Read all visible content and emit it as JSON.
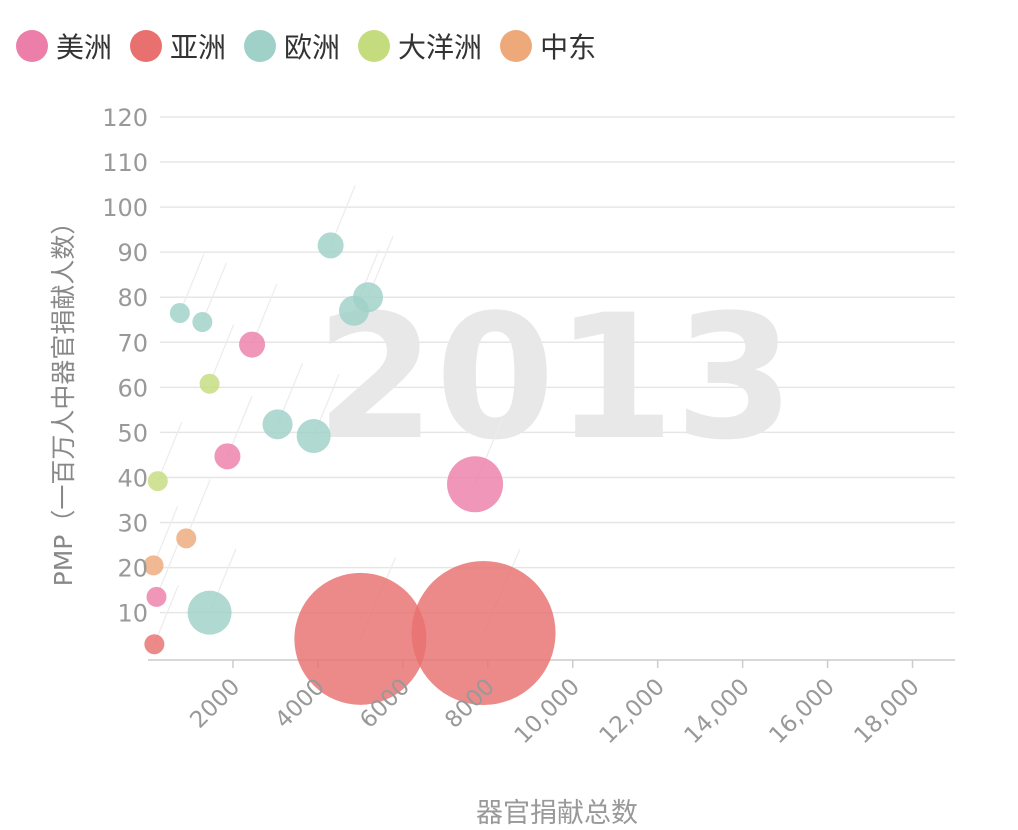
{
  "chart_data": {
    "type": "scatter",
    "xlabel": "器官捐献总数",
    "ylabel": "PMP（一百万人中器官捐献人数）",
    "background_year": "2013",
    "xlim": [
      0,
      19000
    ],
    "ylim": [
      -0.5,
      120
    ],
    "x_ticks": [
      2000,
      4000,
      6000,
      8000,
      10000,
      12000,
      14000,
      16000,
      18000
    ],
    "x_tick_labels": [
      "2000",
      "4000",
      "6000",
      "8000",
      "10,000",
      "12,000",
      "14,000",
      "16,000",
      "18,000"
    ],
    "y_ticks": [
      10,
      20,
      30,
      40,
      50,
      60,
      70,
      80,
      90,
      100,
      110,
      120
    ],
    "y_tick_labels": [
      "10",
      "20",
      "30",
      "40",
      "50",
      "60",
      "70",
      "80",
      "90",
      "100",
      "110",
      "120"
    ],
    "grid": "horizontal",
    "legend_position": "top-left",
    "series": [
      {
        "name": "美洲",
        "color": "#ec7fa9",
        "points": [
          {
            "x": 200,
            "y": 13.5,
            "size": 10
          },
          {
            "x": 1870,
            "y": 44.7,
            "size": 13
          },
          {
            "x": 2450,
            "y": 69.5,
            "size": 13
          },
          {
            "x": 7700,
            "y": 38.5,
            "size": 28
          }
        ]
      },
      {
        "name": "亚洲",
        "color": "#e8706f",
        "points": [
          {
            "x": 150,
            "y": 3.0,
            "size": 10
          },
          {
            "x": 5000,
            "y": 4.2,
            "size": 66
          },
          {
            "x": 7900,
            "y": 5.5,
            "size": 72
          }
        ]
      },
      {
        "name": "欧洲",
        "color": "#9fd1c8",
        "points": [
          {
            "x": 750,
            "y": 76.5,
            "size": 10
          },
          {
            "x": 1280,
            "y": 74.5,
            "size": 10
          },
          {
            "x": 1450,
            "y": 10.0,
            "size": 22
          },
          {
            "x": 3050,
            "y": 51.8,
            "size": 15
          },
          {
            "x": 3900,
            "y": 49.2,
            "size": 17
          },
          {
            "x": 4300,
            "y": 91.5,
            "size": 13
          },
          {
            "x": 4850,
            "y": 77.0,
            "size": 15
          },
          {
            "x": 5180,
            "y": 80.0,
            "size": 15
          }
        ]
      },
      {
        "name": "大洋洲",
        "color": "#c5dc7e",
        "points": [
          {
            "x": 230,
            "y": 39.2,
            "size": 10
          },
          {
            "x": 1450,
            "y": 60.8,
            "size": 10
          }
        ]
      },
      {
        "name": "中东",
        "color": "#eea97b",
        "points": [
          {
            "x": 130,
            "y": 20.5,
            "size": 10
          },
          {
            "x": 900,
            "y": 26.5,
            "size": 10
          }
        ]
      }
    ]
  }
}
